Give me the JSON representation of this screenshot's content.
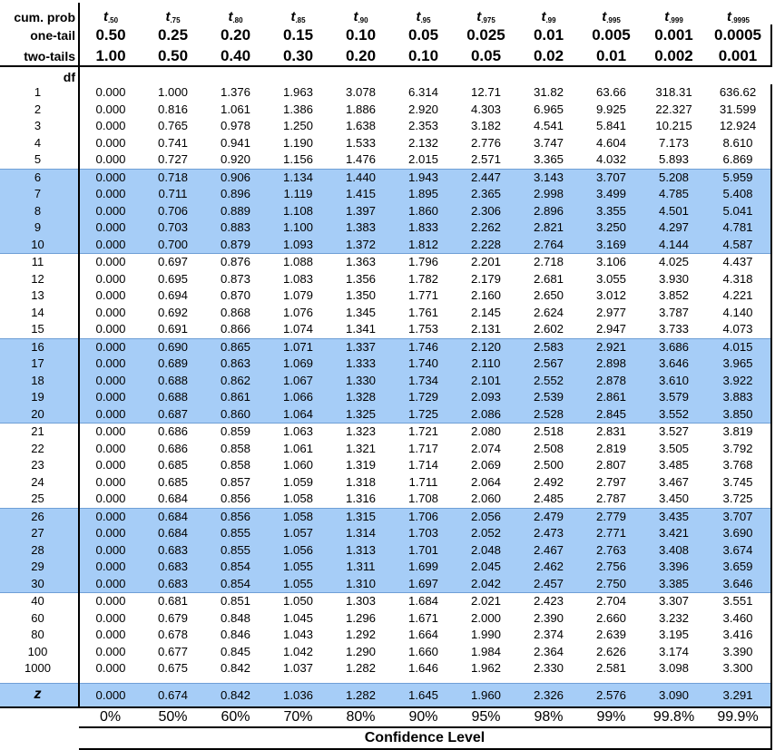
{
  "header": {
    "cum_prob_label": "cum. prob",
    "one_tail_label": "one-tail",
    "two_tails_label": "two-tails",
    "df_label": "df",
    "z_label": "z",
    "t_symbol": "t",
    "columns": [
      {
        "sub": ".50",
        "one_tail": "0.50",
        "two_tails": "1.00",
        "confidence": "0%"
      },
      {
        "sub": ".75",
        "one_tail": "0.25",
        "two_tails": "0.50",
        "confidence": "50%"
      },
      {
        "sub": ".80",
        "one_tail": "0.20",
        "two_tails": "0.40",
        "confidence": "60%"
      },
      {
        "sub": ".85",
        "one_tail": "0.15",
        "two_tails": "0.30",
        "confidence": "70%"
      },
      {
        "sub": ".90",
        "one_tail": "0.10",
        "two_tails": "0.20",
        "confidence": "80%"
      },
      {
        "sub": ".95",
        "one_tail": "0.05",
        "two_tails": "0.10",
        "confidence": "90%"
      },
      {
        "sub": ".975",
        "one_tail": "0.025",
        "two_tails": "0.05",
        "confidence": "95%"
      },
      {
        "sub": ".99",
        "one_tail": "0.01",
        "two_tails": "0.02",
        "confidence": "98%"
      },
      {
        "sub": ".995",
        "one_tail": "0.005",
        "two_tails": "0.01",
        "confidence": "99%"
      },
      {
        "sub": ".999",
        "one_tail": "0.001",
        "two_tails": "0.002",
        "confidence": "99.8%"
      },
      {
        "sub": ".9995",
        "one_tail": "0.0005",
        "two_tails": "0.001",
        "confidence": "99.9%"
      }
    ],
    "confidence_title": "Confidence Level"
  },
  "highlight_color": "#a6cdf7",
  "rows": [
    {
      "df": "1",
      "v": [
        "0.000",
        "1.000",
        "1.376",
        "1.963",
        "3.078",
        "6.314",
        "12.71",
        "31.82",
        "63.66",
        "318.31",
        "636.62"
      ]
    },
    {
      "df": "2",
      "v": [
        "0.000",
        "0.816",
        "1.061",
        "1.386",
        "1.886",
        "2.920",
        "4.303",
        "6.965",
        "9.925",
        "22.327",
        "31.599"
      ]
    },
    {
      "df": "3",
      "v": [
        "0.000",
        "0.765",
        "0.978",
        "1.250",
        "1.638",
        "2.353",
        "3.182",
        "4.541",
        "5.841",
        "10.215",
        "12.924"
      ]
    },
    {
      "df": "4",
      "v": [
        "0.000",
        "0.741",
        "0.941",
        "1.190",
        "1.533",
        "2.132",
        "2.776",
        "3.747",
        "4.604",
        "7.173",
        "8.610"
      ]
    },
    {
      "df": "5",
      "v": [
        "0.000",
        "0.727",
        "0.920",
        "1.156",
        "1.476",
        "2.015",
        "2.571",
        "3.365",
        "4.032",
        "5.893",
        "6.869"
      ]
    },
    {
      "df": "6",
      "v": [
        "0.000",
        "0.718",
        "0.906",
        "1.134",
        "1.440",
        "1.943",
        "2.447",
        "3.143",
        "3.707",
        "5.208",
        "5.959"
      ]
    },
    {
      "df": "7",
      "v": [
        "0.000",
        "0.711",
        "0.896",
        "1.119",
        "1.415",
        "1.895",
        "2.365",
        "2.998",
        "3.499",
        "4.785",
        "5.408"
      ]
    },
    {
      "df": "8",
      "v": [
        "0.000",
        "0.706",
        "0.889",
        "1.108",
        "1.397",
        "1.860",
        "2.306",
        "2.896",
        "3.355",
        "4.501",
        "5.041"
      ]
    },
    {
      "df": "9",
      "v": [
        "0.000",
        "0.703",
        "0.883",
        "1.100",
        "1.383",
        "1.833",
        "2.262",
        "2.821",
        "3.250",
        "4.297",
        "4.781"
      ]
    },
    {
      "df": "10",
      "v": [
        "0.000",
        "0.700",
        "0.879",
        "1.093",
        "1.372",
        "1.812",
        "2.228",
        "2.764",
        "3.169",
        "4.144",
        "4.587"
      ]
    },
    {
      "df": "11",
      "v": [
        "0.000",
        "0.697",
        "0.876",
        "1.088",
        "1.363",
        "1.796",
        "2.201",
        "2.718",
        "3.106",
        "4.025",
        "4.437"
      ]
    },
    {
      "df": "12",
      "v": [
        "0.000",
        "0.695",
        "0.873",
        "1.083",
        "1.356",
        "1.782",
        "2.179",
        "2.681",
        "3.055",
        "3.930",
        "4.318"
      ]
    },
    {
      "df": "13",
      "v": [
        "0.000",
        "0.694",
        "0.870",
        "1.079",
        "1.350",
        "1.771",
        "2.160",
        "2.650",
        "3.012",
        "3.852",
        "4.221"
      ]
    },
    {
      "df": "14",
      "v": [
        "0.000",
        "0.692",
        "0.868",
        "1.076",
        "1.345",
        "1.761",
        "2.145",
        "2.624",
        "2.977",
        "3.787",
        "4.140"
      ]
    },
    {
      "df": "15",
      "v": [
        "0.000",
        "0.691",
        "0.866",
        "1.074",
        "1.341",
        "1.753",
        "2.131",
        "2.602",
        "2.947",
        "3.733",
        "4.073"
      ]
    },
    {
      "df": "16",
      "v": [
        "0.000",
        "0.690",
        "0.865",
        "1.071",
        "1.337",
        "1.746",
        "2.120",
        "2.583",
        "2.921",
        "3.686",
        "4.015"
      ]
    },
    {
      "df": "17",
      "v": [
        "0.000",
        "0.689",
        "0.863",
        "1.069",
        "1.333",
        "1.740",
        "2.110",
        "2.567",
        "2.898",
        "3.646",
        "3.965"
      ]
    },
    {
      "df": "18",
      "v": [
        "0.000",
        "0.688",
        "0.862",
        "1.067",
        "1.330",
        "1.734",
        "2.101",
        "2.552",
        "2.878",
        "3.610",
        "3.922"
      ]
    },
    {
      "df": "19",
      "v": [
        "0.000",
        "0.688",
        "0.861",
        "1.066",
        "1.328",
        "1.729",
        "2.093",
        "2.539",
        "2.861",
        "3.579",
        "3.883"
      ]
    },
    {
      "df": "20",
      "v": [
        "0.000",
        "0.687",
        "0.860",
        "1.064",
        "1.325",
        "1.725",
        "2.086",
        "2.528",
        "2.845",
        "3.552",
        "3.850"
      ]
    },
    {
      "df": "21",
      "v": [
        "0.000",
        "0.686",
        "0.859",
        "1.063",
        "1.323",
        "1.721",
        "2.080",
        "2.518",
        "2.831",
        "3.527",
        "3.819"
      ]
    },
    {
      "df": "22",
      "v": [
        "0.000",
        "0.686",
        "0.858",
        "1.061",
        "1.321",
        "1.717",
        "2.074",
        "2.508",
        "2.819",
        "3.505",
        "3.792"
      ]
    },
    {
      "df": "23",
      "v": [
        "0.000",
        "0.685",
        "0.858",
        "1.060",
        "1.319",
        "1.714",
        "2.069",
        "2.500",
        "2.807",
        "3.485",
        "3.768"
      ]
    },
    {
      "df": "24",
      "v": [
        "0.000",
        "0.685",
        "0.857",
        "1.059",
        "1.318",
        "1.711",
        "2.064",
        "2.492",
        "2.797",
        "3.467",
        "3.745"
      ]
    },
    {
      "df": "25",
      "v": [
        "0.000",
        "0.684",
        "0.856",
        "1.058",
        "1.316",
        "1.708",
        "2.060",
        "2.485",
        "2.787",
        "3.450",
        "3.725"
      ]
    },
    {
      "df": "26",
      "v": [
        "0.000",
        "0.684",
        "0.856",
        "1.058",
        "1.315",
        "1.706",
        "2.056",
        "2.479",
        "2.779",
        "3.435",
        "3.707"
      ]
    },
    {
      "df": "27",
      "v": [
        "0.000",
        "0.684",
        "0.855",
        "1.057",
        "1.314",
        "1.703",
        "2.052",
        "2.473",
        "2.771",
        "3.421",
        "3.690"
      ]
    },
    {
      "df": "28",
      "v": [
        "0.000",
        "0.683",
        "0.855",
        "1.056",
        "1.313",
        "1.701",
        "2.048",
        "2.467",
        "2.763",
        "3.408",
        "3.674"
      ]
    },
    {
      "df": "29",
      "v": [
        "0.000",
        "0.683",
        "0.854",
        "1.055",
        "1.311",
        "1.699",
        "2.045",
        "2.462",
        "2.756",
        "3.396",
        "3.659"
      ]
    },
    {
      "df": "30",
      "v": [
        "0.000",
        "0.683",
        "0.854",
        "1.055",
        "1.310",
        "1.697",
        "2.042",
        "2.457",
        "2.750",
        "3.385",
        "3.646"
      ]
    },
    {
      "df": "40",
      "v": [
        "0.000",
        "0.681",
        "0.851",
        "1.050",
        "1.303",
        "1.684",
        "2.021",
        "2.423",
        "2.704",
        "3.307",
        "3.551"
      ]
    },
    {
      "df": "60",
      "v": [
        "0.000",
        "0.679",
        "0.848",
        "1.045",
        "1.296",
        "1.671",
        "2.000",
        "2.390",
        "2.660",
        "3.232",
        "3.460"
      ]
    },
    {
      "df": "80",
      "v": [
        "0.000",
        "0.678",
        "0.846",
        "1.043",
        "1.292",
        "1.664",
        "1.990",
        "2.374",
        "2.639",
        "3.195",
        "3.416"
      ]
    },
    {
      "df": "100",
      "v": [
        "0.000",
        "0.677",
        "0.845",
        "1.042",
        "1.290",
        "1.660",
        "1.984",
        "2.364",
        "2.626",
        "3.174",
        "3.390"
      ]
    },
    {
      "df": "1000",
      "v": [
        "0.000",
        "0.675",
        "0.842",
        "1.037",
        "1.282",
        "1.646",
        "1.962",
        "2.330",
        "2.581",
        "3.098",
        "3.300"
      ]
    }
  ],
  "z_row": [
    "0.000",
    "0.674",
    "0.842",
    "1.036",
    "1.282",
    "1.645",
    "1.960",
    "2.326",
    "2.576",
    "3.090",
    "3.291"
  ]
}
